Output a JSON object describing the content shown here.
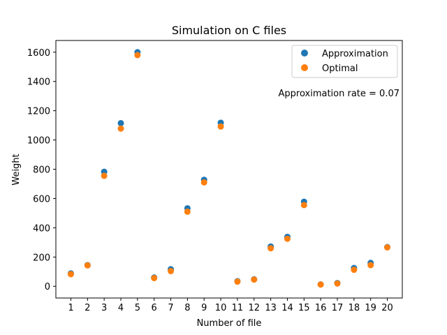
{
  "chart_data": {
    "type": "scatter",
    "title": "Simulation on C files",
    "xlabel": "Number of file",
    "ylabel": "Weight",
    "x": [
      1,
      2,
      3,
      4,
      5,
      6,
      7,
      8,
      9,
      10,
      11,
      12,
      13,
      14,
      15,
      16,
      17,
      18,
      19,
      20
    ],
    "xlim": [
      0.1,
      20.9
    ],
    "ylim": [
      -80,
      1680
    ],
    "y_ticks": [
      0,
      200,
      400,
      600,
      800,
      1000,
      1200,
      1400,
      1600
    ],
    "x_ticks": [
      1,
      2,
      3,
      4,
      5,
      6,
      7,
      8,
      9,
      10,
      11,
      12,
      13,
      14,
      15,
      16,
      17,
      18,
      19,
      20
    ],
    "grid": false,
    "legend_position": "top-right",
    "series": [
      {
        "name": "Approximation",
        "color": "#1f77b4",
        "values": [
          88,
          145,
          783,
          1115,
          1600,
          60,
          117,
          533,
          728,
          1118,
          35,
          48,
          272,
          338,
          578,
          13,
          22,
          125,
          160,
          268
        ]
      },
      {
        "name": "Optimal",
        "color": "#ff7f0e",
        "values": [
          83,
          143,
          755,
          1078,
          1580,
          56,
          104,
          510,
          710,
          1092,
          32,
          46,
          260,
          325,
          555,
          12,
          19,
          113,
          145,
          266
        ]
      }
    ],
    "annotation": "Approximation rate = 0.07"
  }
}
